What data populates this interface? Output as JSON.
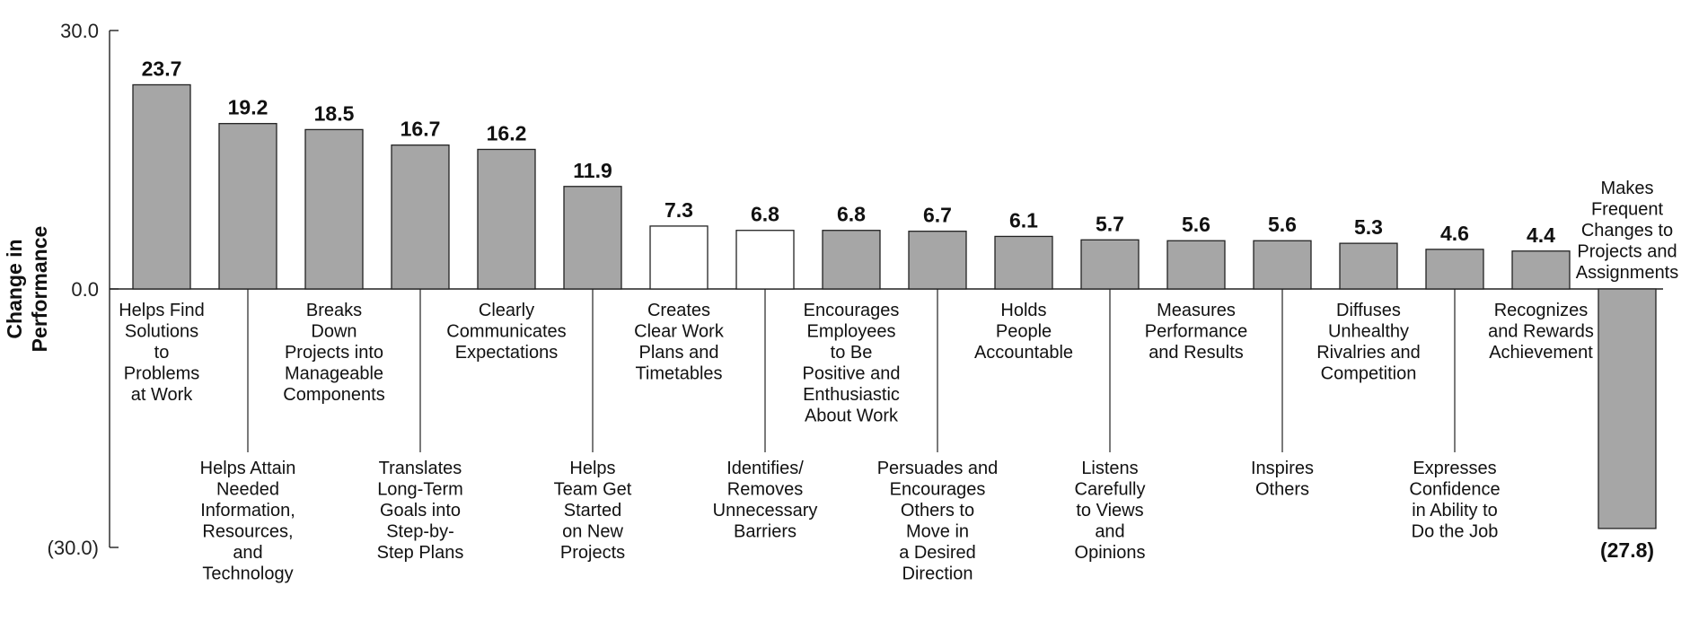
{
  "chart_data": {
    "type": "bar",
    "ylabel_lines": [
      "Change in",
      "Performance"
    ],
    "ylim": [
      -30.0,
      30.0
    ],
    "y_ticks": [
      {
        "value": 30.0,
        "label": "30.0"
      },
      {
        "value": 0.0,
        "label": "0.0"
      },
      {
        "value": -30.0,
        "label": "(30.0)"
      }
    ],
    "grid": false,
    "legend": "none",
    "colors": {
      "gray": "#a6a6a6",
      "white": "#ffffff",
      "stroke": "#222222"
    },
    "bars": [
      {
        "label_lines": [
          "Helps Find",
          "Solutions",
          "to",
          "Problems",
          "at Work"
        ],
        "value": 23.7,
        "value_label": "23.7",
        "fill": "gray"
      },
      {
        "label_lines": [
          "Helps Attain",
          "Needed",
          "Information,",
          "Resources,",
          "and",
          "Technology"
        ],
        "value": 19.2,
        "value_label": "19.2",
        "fill": "gray"
      },
      {
        "label_lines": [
          "Breaks",
          "Down",
          "Projects into",
          "Manageable",
          "Components"
        ],
        "value": 18.5,
        "value_label": "18.5",
        "fill": "gray"
      },
      {
        "label_lines": [
          "Translates",
          "Long-Term",
          "Goals into",
          "Step-by-",
          "Step Plans"
        ],
        "value": 16.7,
        "value_label": "16.7",
        "fill": "gray"
      },
      {
        "label_lines": [
          "Clearly",
          "Communicates",
          "Expectations"
        ],
        "value": 16.2,
        "value_label": "16.2",
        "fill": "gray"
      },
      {
        "label_lines": [
          "Helps",
          "Team Get",
          "Started",
          "on New",
          "Projects"
        ],
        "value": 11.9,
        "value_label": "11.9",
        "fill": "gray"
      },
      {
        "label_lines": [
          "Creates",
          "Clear Work",
          "Plans and",
          "Timetables"
        ],
        "value": 7.3,
        "value_label": "7.3",
        "fill": "white"
      },
      {
        "label_lines": [
          "Identifies/",
          "Removes",
          "Unnecessary",
          "Barriers"
        ],
        "value": 6.8,
        "value_label": "6.8",
        "fill": "white"
      },
      {
        "label_lines": [
          "Encourages",
          "Employees",
          "to Be",
          "Positive and",
          "Enthusiastic",
          "About Work"
        ],
        "value": 6.8,
        "value_label": "6.8",
        "fill": "gray"
      },
      {
        "label_lines": [
          "Persuades and",
          "Encourages",
          "Others to",
          "Move in",
          "a Desired",
          "Direction"
        ],
        "value": 6.7,
        "value_label": "6.7",
        "fill": "gray"
      },
      {
        "label_lines": [
          "Holds",
          "People",
          "Accountable"
        ],
        "value": 6.1,
        "value_label": "6.1",
        "fill": "gray"
      },
      {
        "label_lines": [
          "Listens",
          "Carefully",
          "to Views",
          "and",
          "Opinions"
        ],
        "value": 5.7,
        "value_label": "5.7",
        "fill": "gray"
      },
      {
        "label_lines": [
          "Measures",
          "Performance",
          "and Results"
        ],
        "value": 5.6,
        "value_label": "5.6",
        "fill": "gray"
      },
      {
        "label_lines": [
          "Inspires",
          "Others"
        ],
        "value": 5.6,
        "value_label": "5.6",
        "fill": "gray"
      },
      {
        "label_lines": [
          "Diffuses",
          "Unhealthy",
          "Rivalries and",
          "Competition"
        ],
        "value": 5.3,
        "value_label": "5.3",
        "fill": "gray"
      },
      {
        "label_lines": [
          "Expresses",
          "Confidence",
          "in Ability to",
          "Do the Job"
        ],
        "value": 4.6,
        "value_label": "4.6",
        "fill": "gray"
      },
      {
        "label_lines": [
          "Recognizes",
          "and Rewards",
          "Achievement"
        ],
        "value": 4.4,
        "value_label": "4.4",
        "fill": "gray"
      },
      {
        "label_lines": [
          "Makes",
          "Frequent",
          "Changes to",
          "Projects and",
          "Assignments"
        ],
        "value": -27.8,
        "value_label": "(27.8)",
        "fill": "gray"
      }
    ]
  }
}
